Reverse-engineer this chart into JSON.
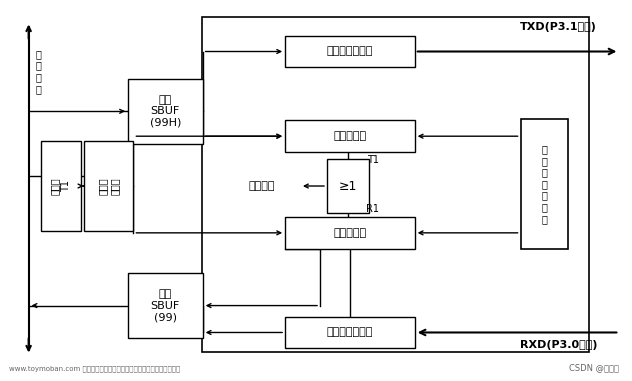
{
  "bg_color": "#ffffff",
  "line_color": "#000000",
  "text_color": "#000000",
  "font_size": 9,
  "watermark1": "www.toymoban.com 网络图片仅供展示，非存储，如有侵权请联系删除。",
  "watermark2": "CSDN @咋鱼弟",
  "txd_label": "TXD(P3.1引脚)",
  "rxd_label": "RXD(P3.0引脚)"
}
